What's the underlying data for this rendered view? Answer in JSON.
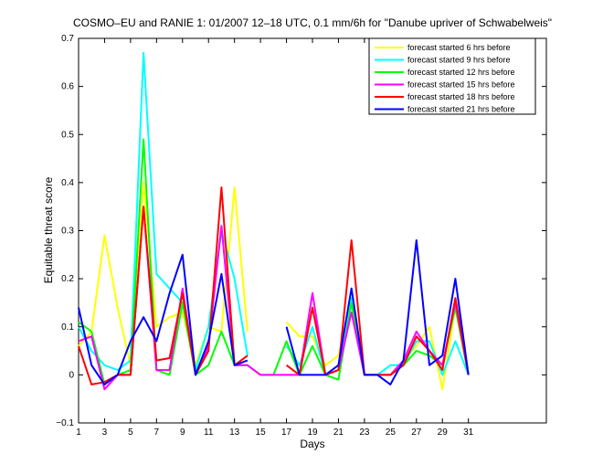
{
  "chart_data": {
    "type": "line",
    "title": "COSMO–EU and RANIE 1: 01/2007 12–18 UTC, 0.1 mm/6h for \"Danube upriver of Schwabelweis\"",
    "xlabel": "Days",
    "ylabel": "Equitable threat score",
    "xlim": [
      1,
      37
    ],
    "ylim": [
      -0.1,
      0.7
    ],
    "xticks": [
      1,
      3,
      5,
      7,
      9,
      11,
      13,
      15,
      17,
      19,
      21,
      23,
      25,
      27,
      29,
      31
    ],
    "yticks": [
      -0.1,
      0,
      0.1,
      0.2,
      0.3,
      0.4,
      0.5,
      0.6,
      0.7
    ],
    "ytick_labels": [
      "−0.1",
      "0",
      "0.1",
      "0.2",
      "0.3",
      "0.4",
      "0.5",
      "0.6",
      "0.7"
    ],
    "legend_position": "top-right",
    "grid": false,
    "x": [
      1,
      2,
      3,
      4,
      5,
      6,
      7,
      8,
      9,
      10,
      11,
      12,
      13,
      14,
      15,
      16,
      17,
      18,
      19,
      20,
      21,
      22,
      23,
      24,
      25,
      26,
      27,
      28,
      29,
      30,
      31
    ],
    "series": [
      {
        "name": "forecast started 6 hrs before",
        "color": "#ffff00",
        "values": [
          0.06,
          0.09,
          0.29,
          0.14,
          0.02,
          0.4,
          0.1,
          0.12,
          0.13,
          0.02,
          0.1,
          0.09,
          0.39,
          0.09,
          null,
          null,
          0.11,
          0.08,
          0.08,
          0.02,
          0.04,
          0.15,
          0.0,
          0.0,
          0.0,
          0.03,
          0.06,
          0.1,
          -0.03,
          0.14,
          0.0
        ]
      },
      {
        "name": "forecast started 9 hrs before",
        "color": "#00ffff",
        "values": [
          0.1,
          0.05,
          0.02,
          0.01,
          0.03,
          0.67,
          0.21,
          0.18,
          0.15,
          0.01,
          0.1,
          0.3,
          0.2,
          0.04,
          null,
          null,
          0.06,
          0.02,
          0.1,
          0.0,
          0.01,
          0.16,
          0.0,
          0.0,
          0.02,
          0.02,
          0.07,
          0.07,
          0.0,
          0.07,
          0.0
        ]
      },
      {
        "name": "forecast started 12 hrs before",
        "color": "#00ff00",
        "values": [
          0.11,
          0.09,
          -0.02,
          0.0,
          0.01,
          0.49,
          0.01,
          0.0,
          0.15,
          0.0,
          0.02,
          0.09,
          0.02,
          0.02,
          0.0,
          0.0,
          0.07,
          0.0,
          0.06,
          0.0,
          -0.01,
          0.15,
          0.0,
          0.0,
          0.0,
          0.02,
          0.05,
          0.04,
          0.02,
          0.14,
          0.0
        ]
      },
      {
        "name": "forecast started 15 hrs before",
        "color": "#ff00ff",
        "values": [
          0.07,
          0.08,
          -0.03,
          0.0,
          0.0,
          0.35,
          0.01,
          0.01,
          0.18,
          0.0,
          0.06,
          0.31,
          0.02,
          0.02,
          0.0,
          0.0,
          0.0,
          0.0,
          0.17,
          0.0,
          0.01,
          0.13,
          0.0,
          0.0,
          0.0,
          0.03,
          0.09,
          0.05,
          0.02,
          0.15,
          0.0
        ]
      },
      {
        "name": "forecast started 18 hrs before",
        "color": "#ff0000",
        "values": [
          0.06,
          -0.02,
          -0.015,
          0.0,
          0.0,
          0.35,
          0.03,
          0.035,
          0.17,
          0.0,
          0.05,
          0.39,
          0.02,
          0.04,
          null,
          null,
          0.02,
          0.0,
          0.14,
          0.0,
          0.01,
          0.28,
          0.0,
          0.0,
          0.0,
          0.02,
          0.08,
          0.05,
          0.01,
          0.16,
          0.0
        ]
      },
      {
        "name": "forecast started 21 hrs before",
        "color": "#0000ff",
        "values": [
          0.14,
          0.02,
          -0.02,
          0.0,
          0.07,
          0.12,
          0.07,
          0.17,
          0.25,
          0.0,
          0.07,
          0.21,
          0.02,
          0.03,
          null,
          null,
          0.1,
          0.0,
          0.0,
          0.0,
          0.02,
          0.18,
          0.0,
          0.0,
          -0.02,
          0.03,
          0.28,
          0.02,
          0.04,
          0.2,
          0.0
        ]
      }
    ]
  }
}
